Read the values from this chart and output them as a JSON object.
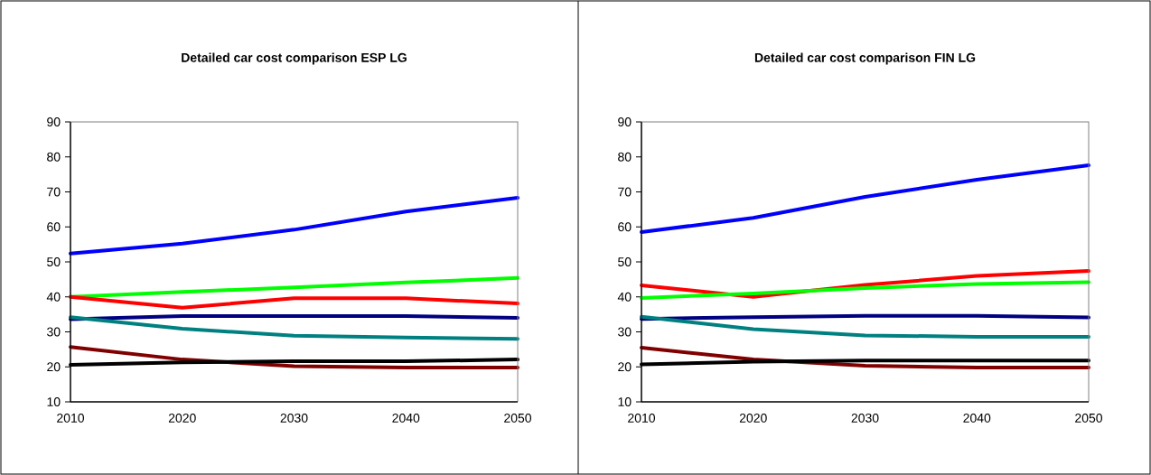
{
  "chart_data": [
    {
      "type": "line",
      "title": "Detailed car cost comparison ESP LG",
      "x": [
        2010,
        2020,
        2030,
        2040,
        2050
      ],
      "xlim": [
        2010,
        2050
      ],
      "xticks": [
        2010,
        2020,
        2030,
        2040,
        2050
      ],
      "ylim": [
        10,
        90
      ],
      "yticks": [
        10,
        20,
        30,
        40,
        50,
        60,
        70,
        80,
        90
      ],
      "marker": "none",
      "line_style": "solid",
      "series": [
        {
          "color": "#0000ff",
          "values": [
            52.4,
            55.2,
            59.2,
            64.4,
            68.3
          ]
        },
        {
          "color": "#00ff00",
          "values": [
            40.0,
            41.4,
            42.7,
            44.1,
            45.4
          ]
        },
        {
          "color": "#ff0000",
          "values": [
            40.0,
            36.9,
            39.6,
            39.6,
            38.1
          ]
        },
        {
          "color": "#000080",
          "values": [
            33.6,
            34.5,
            34.5,
            34.5,
            34.0
          ]
        },
        {
          "color": "#008080",
          "values": [
            34.2,
            30.9,
            28.9,
            28.4,
            28.0
          ]
        },
        {
          "color": "#800000",
          "values": [
            25.7,
            22.1,
            20.2,
            19.8,
            19.8
          ]
        },
        {
          "color": "#000000",
          "values": [
            20.6,
            21.3,
            21.6,
            21.6,
            22.1
          ]
        }
      ]
    },
    {
      "type": "line",
      "title": "Detailed car cost comparison FIN LG",
      "x": [
        2010,
        2020,
        2030,
        2040,
        2050
      ],
      "xlim": [
        2010,
        2050
      ],
      "xticks": [
        2010,
        2020,
        2030,
        2040,
        2050
      ],
      "ylim": [
        10,
        90
      ],
      "yticks": [
        10,
        20,
        30,
        40,
        50,
        60,
        70,
        80,
        90
      ],
      "marker": "none",
      "line_style": "solid",
      "series": [
        {
          "color": "#0000ff",
          "values": [
            58.5,
            62.6,
            68.6,
            73.5,
            77.6
          ]
        },
        {
          "color": "#ff0000",
          "values": [
            43.3,
            40.0,
            43.4,
            46.0,
            47.4
          ]
        },
        {
          "color": "#00ff00",
          "values": [
            39.7,
            41.0,
            42.5,
            43.7,
            44.2
          ]
        },
        {
          "color": "#000080",
          "values": [
            33.7,
            34.2,
            34.6,
            34.6,
            34.1
          ]
        },
        {
          "color": "#008080",
          "values": [
            34.3,
            30.8,
            29.0,
            28.6,
            28.6
          ]
        },
        {
          "color": "#800000",
          "values": [
            25.5,
            22.1,
            20.3,
            19.8,
            19.8
          ]
        },
        {
          "color": "#000000",
          "values": [
            20.7,
            21.5,
            21.8,
            21.8,
            21.8
          ]
        }
      ]
    }
  ]
}
